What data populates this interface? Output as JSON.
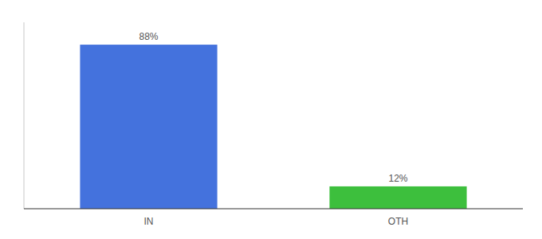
{
  "chart_data": {
    "type": "bar",
    "categories": [
      "IN",
      "OTH"
    ],
    "values": [
      88,
      12
    ],
    "value_labels": [
      "88%",
      "12%"
    ],
    "colors": [
      "#4472DD",
      "#3DBF3D"
    ],
    "ylim": [
      0,
      100
    ],
    "data_labels": true,
    "tick_labels": "x"
  }
}
